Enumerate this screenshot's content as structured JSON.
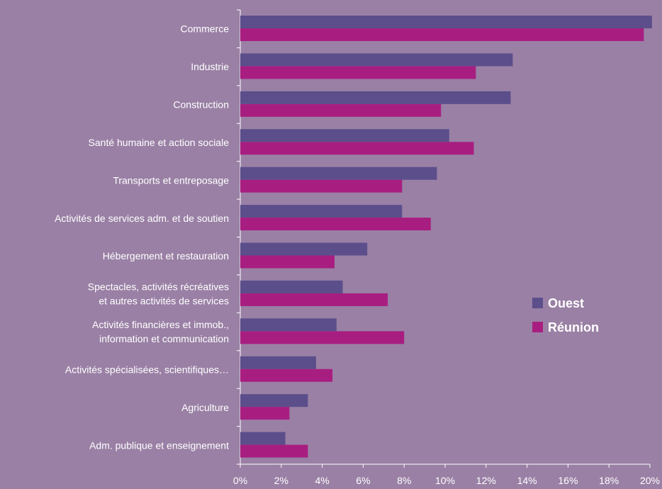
{
  "chart_data": {
    "type": "bar",
    "orientation": "horizontal",
    "categories": [
      [
        "Commerce"
      ],
      [
        "Industrie"
      ],
      [
        "Construction"
      ],
      [
        "Santé humaine et action sociale"
      ],
      [
        "Transports et entreposage"
      ],
      [
        "Activités de services adm. et de soutien"
      ],
      [
        "Hébergement et restauration"
      ],
      [
        "Spectacles, activités récréatives",
        "et autres activités de services"
      ],
      [
        "Activités financières et immob.,",
        "information et communication"
      ],
      [
        "Activités spécialisées, scientifiques…"
      ],
      [
        "Agriculture"
      ],
      [
        "Adm. publique et enseignement"
      ]
    ],
    "series": [
      {
        "name": "Ouest",
        "color": "#5B4E8B",
        "values": [
          20.1,
          13.3,
          13.2,
          10.2,
          9.6,
          7.9,
          6.2,
          5.0,
          4.7,
          3.7,
          3.3,
          2.2
        ]
      },
      {
        "name": "Réunion",
        "color": "#A81E80",
        "values": [
          19.7,
          11.5,
          9.8,
          11.4,
          7.9,
          9.3,
          4.6,
          7.2,
          8.0,
          4.5,
          2.4,
          3.3
        ]
      }
    ],
    "xlim": [
      0,
      20
    ],
    "xtick_labels": [
      "0%",
      "2%",
      "4%",
      "6%",
      "8%",
      "10%",
      "12%",
      "14%",
      "16%",
      "18%",
      "20%"
    ],
    "grid": false,
    "legend_position": "right",
    "background_color": "#9A80A5",
    "axis_color": "#FFFFFF",
    "text_color": "#FFFFFF"
  }
}
